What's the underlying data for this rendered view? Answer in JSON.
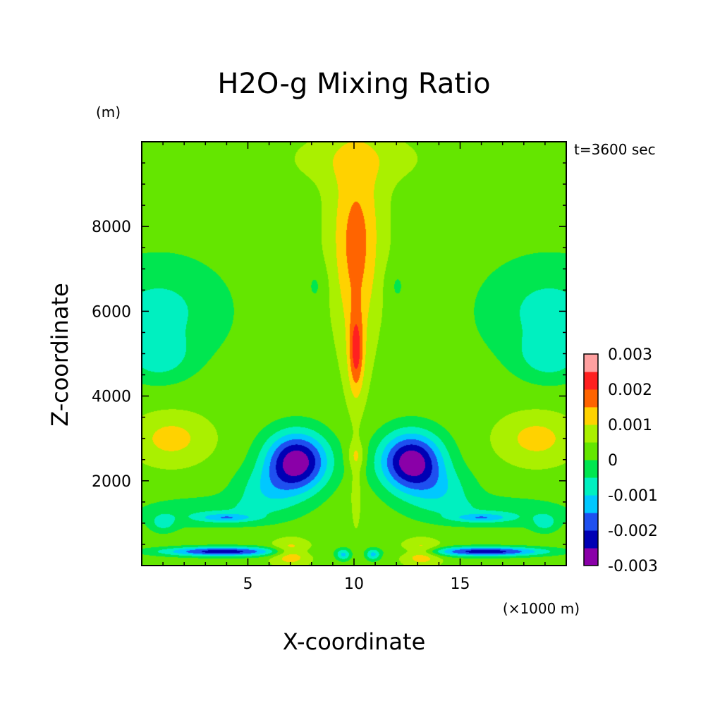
{
  "chart_data": {
    "type": "heatmap",
    "title": "H2O-g Mixing Ratio",
    "ylabel": "Z-coordinate",
    "xlabel": "X-coordinate",
    "y_unit": "(m)",
    "x_unit": "(×1000 m)",
    "time_label": "t=3600 sec",
    "xlim": [
      0,
      20
    ],
    "ylim": [
      0,
      10000
    ],
    "x_ticks": [
      5,
      10,
      15
    ],
    "y_ticks": [
      2000,
      4000,
      6000,
      8000
    ],
    "x_tick_labels": [
      "5",
      "10",
      "15"
    ],
    "y_tick_labels": [
      "2000",
      "4000",
      "6000",
      "8000"
    ],
    "colorbar": {
      "levels": [
        -0.003,
        -0.0025,
        -0.002,
        -0.0015,
        -0.001,
        -0.0005,
        0,
        0.0005,
        0.001,
        0.0015,
        0.002,
        0.0025,
        0.003
      ],
      "colors": [
        "#8a00a8",
        "#0000b4",
        "#1e50f0",
        "#00c8ff",
        "#00f0c0",
        "#00e650",
        "#64e600",
        "#aaf000",
        "#ffd200",
        "#ff6400",
        "#ff2020",
        "#ffa0a0"
      ],
      "tick_labels": [
        "-0.003",
        "-0.002",
        "-0.001",
        "0",
        "0.001",
        "0.002",
        "0.003"
      ]
    },
    "background_value": 0.0003,
    "features": [
      {
        "x": 3.0,
        "z": 1250,
        "sx": 3.4,
        "sz": 380,
        "amp": -0.0007
      },
      {
        "x": 17.0,
        "z": 1250,
        "sx": 3.4,
        "sz": 380,
        "amp": -0.0007
      },
      {
        "x": 7.3,
        "z": 2450,
        "sx": 1.5,
        "sz": 700,
        "amp": -0.0032
      },
      {
        "x": 12.7,
        "z": 2450,
        "sx": 1.5,
        "sz": 700,
        "amp": -0.0032
      },
      {
        "x": 5.8,
        "z": 1750,
        "sx": 1.6,
        "sz": 550,
        "amp": -0.0009
      },
      {
        "x": 14.2,
        "z": 1750,
        "sx": 1.6,
        "sz": 550,
        "amp": -0.0009
      },
      {
        "x": 4.0,
        "z": 1130,
        "sx": 1.3,
        "sz": 100,
        "amp": -0.0012
      },
      {
        "x": 16.0,
        "z": 1130,
        "sx": 1.3,
        "sz": 100,
        "amp": -0.0012
      },
      {
        "x": 3.8,
        "z": 330,
        "sx": 2.8,
        "sz": 110,
        "amp": -0.0026
      },
      {
        "x": 16.2,
        "z": 330,
        "sx": 2.8,
        "sz": 110,
        "amp": -0.0026
      },
      {
        "x": 1.0,
        "z": 1000,
        "sx": 0.6,
        "sz": 220,
        "amp": -0.0008
      },
      {
        "x": 19.0,
        "z": 1000,
        "sx": 0.6,
        "sz": 220,
        "amp": -0.0008
      },
      {
        "x": 9.5,
        "z": 260,
        "sx": 0.35,
        "sz": 140,
        "amp": -0.0014
      },
      {
        "x": 10.9,
        "z": 260,
        "sx": 0.35,
        "sz": 140,
        "amp": -0.0014
      },
      {
        "x": 0.8,
        "z": 6000,
        "sx": 3.3,
        "sz": 1300,
        "amp": -0.00095
      },
      {
        "x": 19.2,
        "z": 6000,
        "sx": 3.3,
        "sz": 1300,
        "amp": -0.00095
      },
      {
        "x": 0.8,
        "z": 4900,
        "sx": 1.4,
        "sz": 520,
        "amp": -0.0008
      },
      {
        "x": 19.2,
        "z": 4900,
        "sx": 1.4,
        "sz": 520,
        "amp": -0.0008
      },
      {
        "x": 1.4,
        "z": 3000,
        "sx": 1.8,
        "sz": 600,
        "amp": 0.0009
      },
      {
        "x": 18.6,
        "z": 3000,
        "sx": 1.8,
        "sz": 600,
        "amp": 0.0009
      },
      {
        "x": 10.1,
        "z": 8000,
        "sx": 1.3,
        "sz": 1900,
        "amp": 0.0009
      },
      {
        "x": 10.1,
        "z": 9600,
        "sx": 3.0,
        "sz": 600,
        "amp": 0.0005
      },
      {
        "x": 10.1,
        "z": 6600,
        "sx": 0.9,
        "sz": 2400,
        "amp": 0.0007
      },
      {
        "x": 10.1,
        "z": 5000,
        "sx": 0.35,
        "sz": 950,
        "amp": 0.0015
      },
      {
        "x": 10.1,
        "z": 2600,
        "sx": 0.45,
        "sz": 300,
        "amp": 0.0006
      },
      {
        "x": 10.1,
        "z": 2000,
        "sx": 0.3,
        "sz": 1200,
        "amp": 0.0005
      },
      {
        "x": 7.0,
        "z": 300,
        "sx": 0.9,
        "sz": 300,
        "amp": 0.0012
      },
      {
        "x": 13.2,
        "z": 300,
        "sx": 0.9,
        "sz": 300,
        "amp": 0.0012
      },
      {
        "x": 8.2,
        "z": 6600,
        "sx": 0.5,
        "sz": 500,
        "amp": -0.0004
      },
      {
        "x": 12.0,
        "z": 6600,
        "sx": 0.5,
        "sz": 500,
        "amp": -0.0004
      }
    ]
  }
}
